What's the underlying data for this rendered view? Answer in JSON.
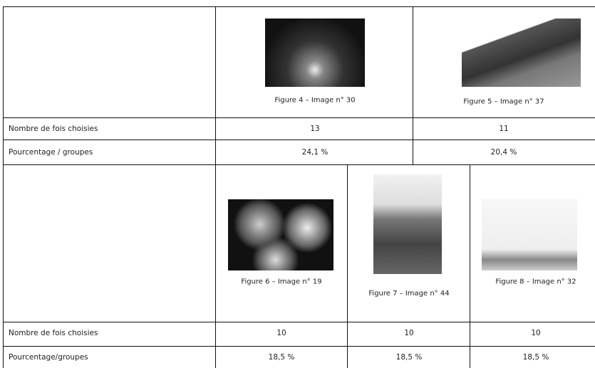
{
  "table": {
    "top": {
      "captions": [
        "Figure 4 – Image n° 30",
        "Figure 5 – Image n° 37"
      ],
      "rows": [
        {
          "label": "Nombre de fois choisies",
          "values": [
            "13",
            "11"
          ]
        },
        {
          "label": "Pourcentage / groupes",
          "values": [
            "24,1 %",
            "20,4 %"
          ]
        }
      ]
    },
    "bottom": {
      "captions": [
        "Figure 6 – Image n° 19",
        "Figure 7 – Image n° 44",
        "Figure 8 – Image n° 32"
      ],
      "rows": [
        {
          "label": "Nombre de fois choisies",
          "values": [
            "10",
            "10",
            "10"
          ]
        },
        {
          "label": "Pourcentage/groupes",
          "values": [
            "18,5 %",
            "18,5 %",
            "18,5 %"
          ]
        }
      ]
    }
  }
}
